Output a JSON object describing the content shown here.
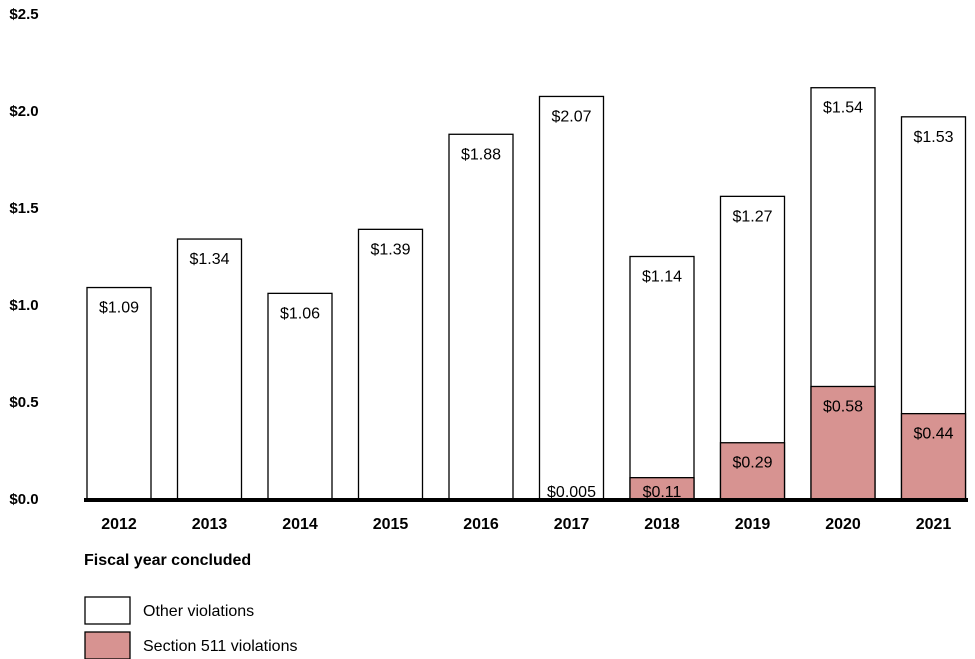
{
  "chart_data": {
    "type": "bar",
    "stacked": true,
    "categories": [
      "2012",
      "2013",
      "2014",
      "2015",
      "2016",
      "2017",
      "2018",
      "2019",
      "2020",
      "2021"
    ],
    "series": [
      {
        "name": "Section 511 violations",
        "values": [
          0,
          0,
          0,
          0,
          0,
          0.005,
          0.11,
          0.29,
          0.58,
          0.44
        ],
        "labels": [
          "",
          "",
          "",
          "",
          "",
          "$0.005",
          "$0.11",
          "$0.29",
          "$0.58",
          "$0.44"
        ],
        "color": "#d79391"
      },
      {
        "name": "Other violations",
        "values": [
          1.09,
          1.34,
          1.06,
          1.39,
          1.88,
          2.07,
          1.14,
          1.27,
          1.54,
          1.53
        ],
        "labels": [
          "$1.09",
          "$1.34",
          "$1.06",
          "$1.39",
          "$1.88",
          "$2.07",
          "$1.14",
          "$1.27",
          "$1.54",
          "$1.53"
        ],
        "color": "#ffffff"
      }
    ],
    "yticks": [
      "$0.0",
      "$0.5",
      "$1.0",
      "$1.5",
      "$2.0",
      "$2.5"
    ],
    "ytick_values": [
      0,
      0.5,
      1.0,
      1.5,
      2.0,
      2.5
    ],
    "ylim": [
      0,
      2.5
    ],
    "xlabel": "Fiscal year concluded",
    "ylabel": "",
    "grid": false,
    "legend_position": "bottom-left"
  }
}
